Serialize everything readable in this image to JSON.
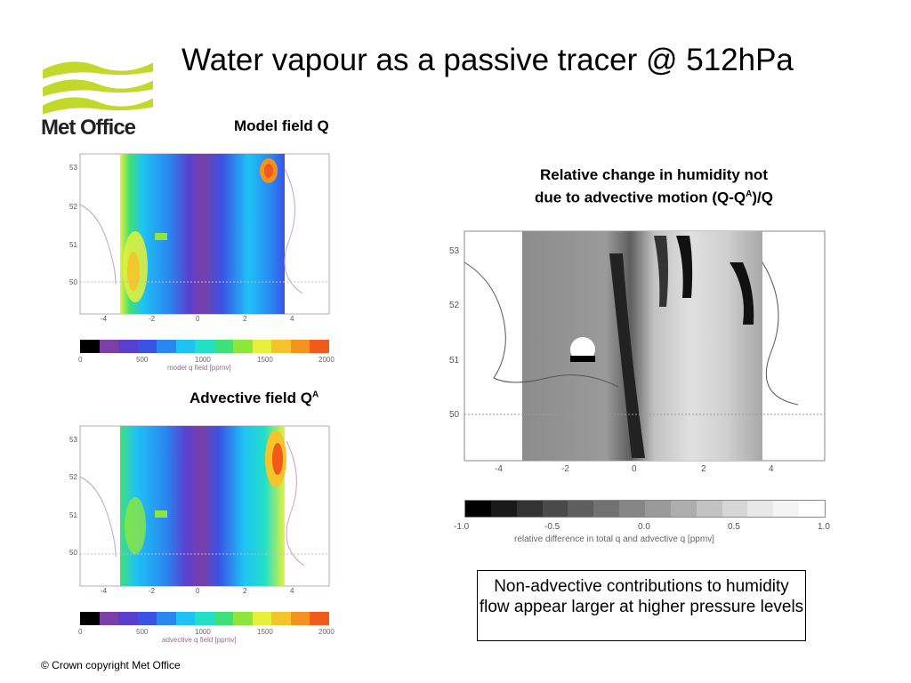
{
  "slide": {
    "title": "Water vapour as a passive tracer @ 512hPa",
    "copyright": "© Crown copyright   Met Office",
    "logo_text": "Met Office"
  },
  "panels": {
    "model": {
      "caption": "Model field Q",
      "lat_ticks": [
        "53",
        "52",
        "51",
        "50"
      ],
      "lon_ticks": [
        "-4",
        "-2",
        "0",
        "2",
        "4"
      ],
      "colorbar_ticks": [
        "0",
        "500",
        "1000",
        "1500",
        "2000"
      ],
      "colorbar_label": "model q field [ppmv]"
    },
    "advective": {
      "caption_main": "Advective field Q",
      "caption_sup": "A",
      "lat_ticks": [
        "53",
        "52",
        "51",
        "50"
      ],
      "lon_ticks": [
        "-4",
        "-2",
        "0",
        "2",
        "4"
      ],
      "colorbar_ticks": [
        "0",
        "500",
        "1000",
        "1500",
        "2000"
      ],
      "colorbar_label": "advective q field [ppmv]"
    },
    "relative": {
      "caption_line1": "Relative change in humidity not",
      "caption_line2_a": "due to advective motion (Q-Q",
      "caption_line2_sup": "A",
      "caption_line2_b": ")/Q",
      "lat_ticks": [
        "53",
        "52",
        "51",
        "50"
      ],
      "lon_ticks": [
        "-4",
        "-2",
        "0",
        "2",
        "4"
      ],
      "colorbar_ticks": [
        "-1.0",
        "-0.5",
        "0.0",
        "0.5",
        "1.0"
      ],
      "colorbar_label": "relative difference in total q and advective q [ppmv]"
    }
  },
  "note": "Non-advective contributions to humidity flow appear larger at higher pressure levels",
  "colors": {
    "colorscale": [
      "#000000",
      "#7b3fa6",
      "#5a3fcf",
      "#3a52e6",
      "#2a86f0",
      "#1fc2f5",
      "#22e0c8",
      "#3ee07a",
      "#8ee63c",
      "#e6f03a",
      "#f5c42a",
      "#f59320",
      "#f05a1a"
    ],
    "greyscale": [
      "#000000",
      "#1a1a1a",
      "#333333",
      "#4a4a4a",
      "#5e5e5e",
      "#727272",
      "#868686",
      "#9a9a9a",
      "#aeaeae",
      "#c2c2c2",
      "#d6d6d6",
      "#e8e8e8",
      "#f4f4f4",
      "#ffffff"
    ],
    "logo_green": "#c2d82a"
  }
}
